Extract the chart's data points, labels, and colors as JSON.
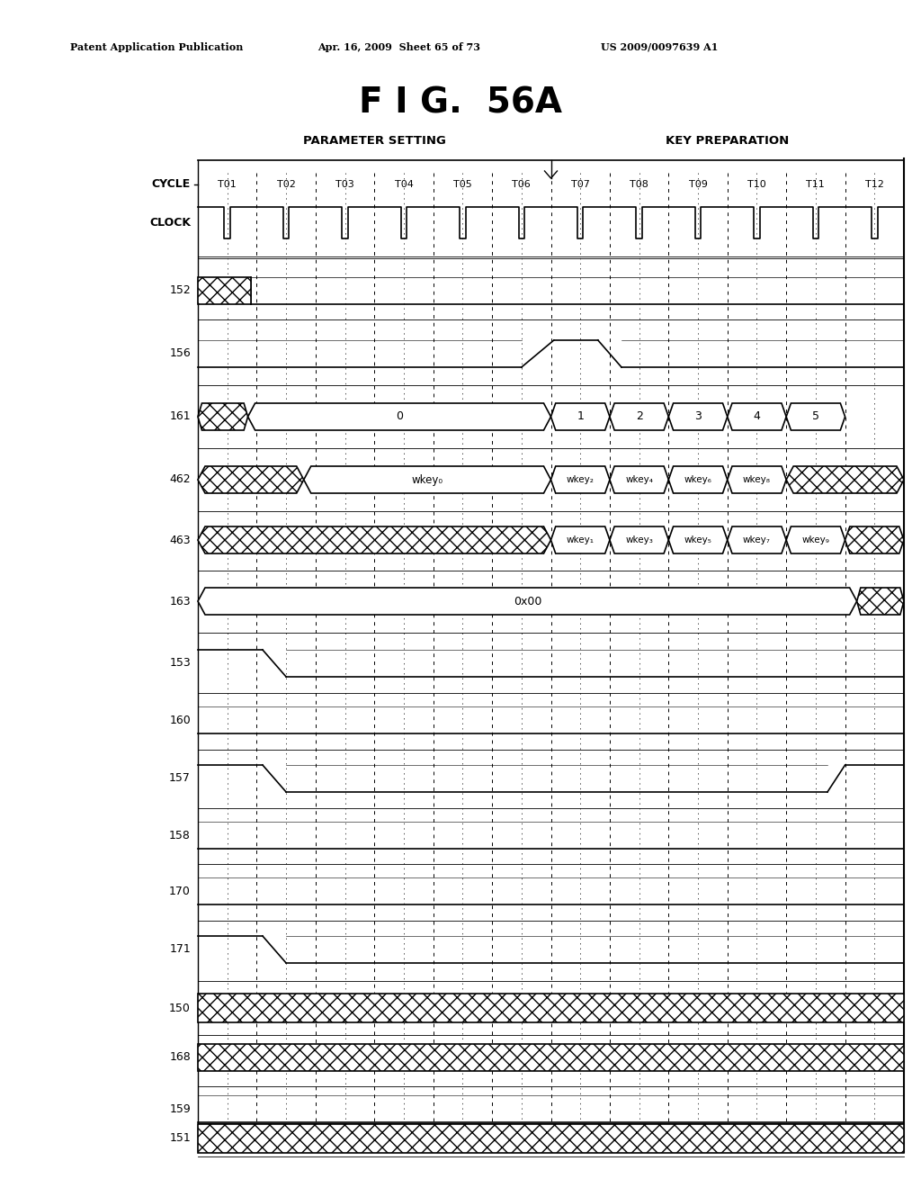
{
  "title": "F I G.  56A",
  "header_left": "Patent Application Publication",
  "header_center": "Apr. 16, 2009  Sheet 65 of 73",
  "header_right": "US 2009/0097639 A1",
  "section1": "PARAMETER SETTING",
  "section2": "KEY PREPARATION",
  "cycles": [
    "T01",
    "T02",
    "T03",
    "T04",
    "T05",
    "T06",
    "T07",
    "T08",
    "T09",
    "T10",
    "T11",
    "T12"
  ],
  "signal_labels": [
    "152",
    "156",
    "161",
    "462",
    "463",
    "163",
    "153",
    "160",
    "157",
    "158",
    "170",
    "171",
    "150",
    "168",
    "159",
    "151"
  ],
  "bg_color": "#ffffff"
}
